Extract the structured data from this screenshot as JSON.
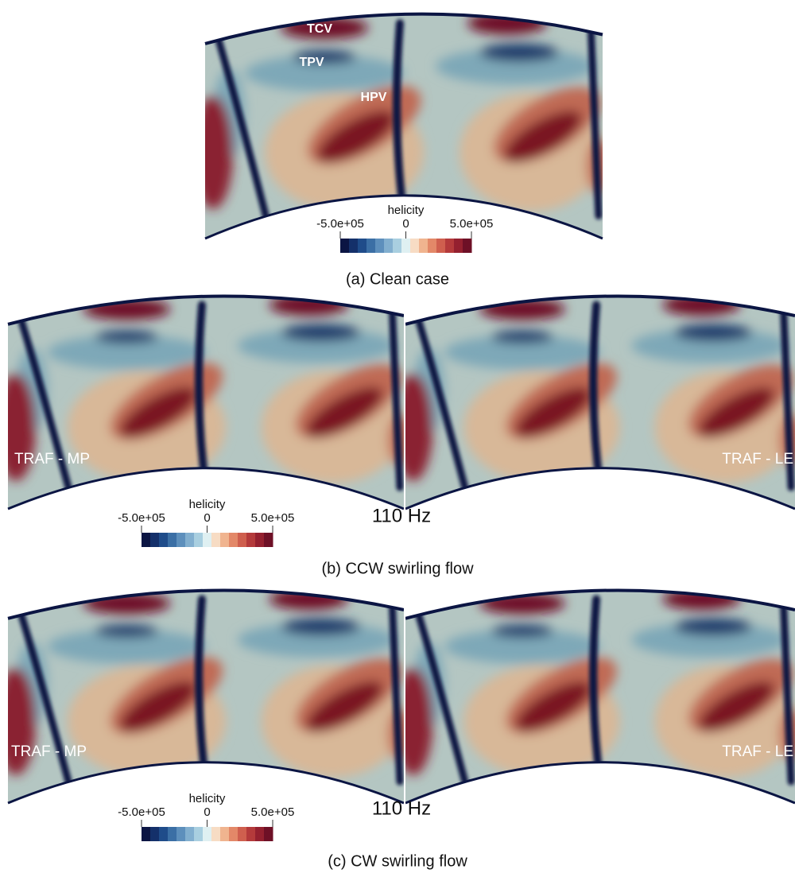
{
  "panels": [
    {
      "caption": "(a) Clean case",
      "annotations": [
        "TCV",
        "TPV",
        "HPV"
      ],
      "colorbar": {
        "title": "helicity",
        "ticks": [
          "-5.0e+05",
          "0",
          "5.0e+05"
        ]
      }
    },
    {
      "caption": "(b) CCW swirling flow",
      "left_label": "TRAF - MP",
      "right_label": "TRAF - LE",
      "frequency": "110 Hz",
      "colorbar": {
        "title": "helicity",
        "ticks": [
          "-5.0e+05",
          "0",
          "5.0e+05"
        ]
      }
    },
    {
      "caption": "(c) CW swirling flow",
      "left_label": "TRAF - MP",
      "right_label": "TRAF - LE",
      "frequency": "110 Hz",
      "colorbar": {
        "title": "helicity",
        "ticks": [
          "-5.0e+05",
          "0",
          "5.0e+05"
        ]
      }
    }
  ]
}
